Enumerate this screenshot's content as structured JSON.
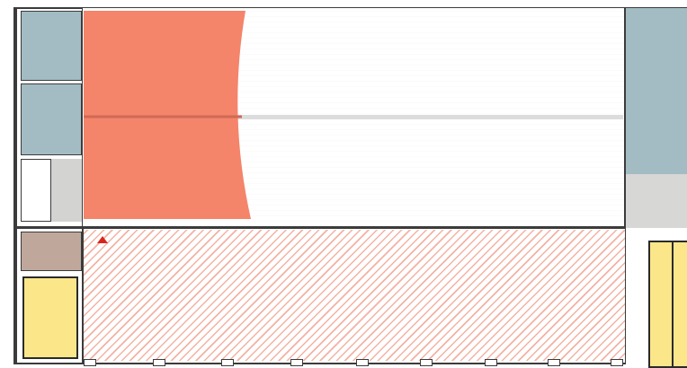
{
  "plan": {
    "colors": {
      "wall": "#3b3b3b",
      "storage_blue": "#a3bcc4",
      "neutral_gray": "#d3d3d1",
      "brown": "#bfa89b",
      "yellow": "#fbe68a",
      "orange": "#f4846a",
      "hatch": "#f3b2a3"
    },
    "icons": [
      "marker-icon"
    ]
  }
}
